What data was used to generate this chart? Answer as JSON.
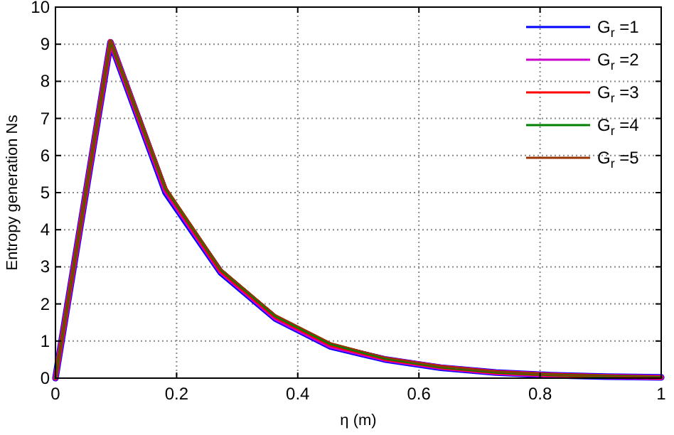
{
  "chart_data": {
    "type": "line",
    "xlabel": "η (m)",
    "ylabel": "Entropy generation Ns",
    "x": [
      0,
      0.0909,
      0.1818,
      0.2727,
      0.3636,
      0.4545,
      0.5455,
      0.6364,
      0.7273,
      0.8182,
      0.9091,
      1
    ],
    "series": [
      {
        "name": "G$_{r}$ =1",
        "color": "#0000ff",
        "values": [
          0,
          9.05,
          5.0,
          2.85,
          1.6,
          0.85,
          0.5,
          0.28,
          0.15,
          0.08,
          0.04,
          0.02
        ]
      },
      {
        "name": "G$_{r}$ =2",
        "color": "#cc00cc",
        "values": [
          0,
          9.07,
          5.05,
          2.88,
          1.62,
          0.87,
          0.51,
          0.29,
          0.15,
          0.08,
          0.04,
          0.02
        ]
      },
      {
        "name": "G$_{r}$ =3",
        "color": "#ff0000",
        "values": [
          0,
          9.08,
          5.1,
          2.9,
          1.65,
          0.9,
          0.52,
          0.3,
          0.16,
          0.09,
          0.05,
          0.02
        ]
      },
      {
        "name": "G$_{r}$ =4",
        "color": "#008000",
        "values": [
          0,
          9.09,
          5.12,
          2.93,
          1.67,
          0.92,
          0.53,
          0.3,
          0.16,
          0.09,
          0.05,
          0.02
        ]
      },
      {
        "name": "G$_{r}$ =5",
        "color": "#993300",
        "values": [
          0,
          9.1,
          5.15,
          2.95,
          1.7,
          0.95,
          0.55,
          0.31,
          0.17,
          0.09,
          0.05,
          0.02
        ]
      }
    ],
    "xlim": [
      0,
      1
    ],
    "xticks": [
      0,
      0.2,
      0.4,
      0.6,
      0.8,
      1
    ],
    "ylim": [
      0,
      10
    ],
    "yticks": [
      0,
      1,
      2,
      3,
      4,
      5,
      6,
      7,
      8,
      9,
      10
    ],
    "grid": true,
    "legend": "top right",
    "marker": "none",
    "line_style": "solid"
  }
}
